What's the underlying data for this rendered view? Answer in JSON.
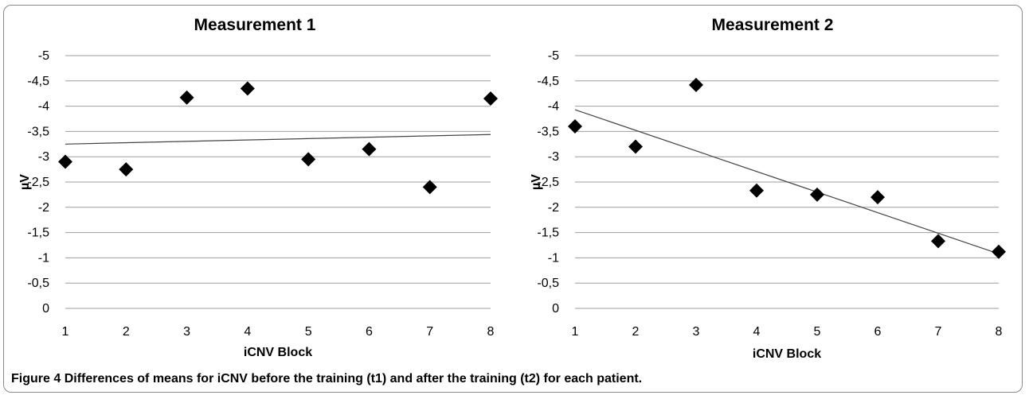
{
  "caption": {
    "label": "Figure 4",
    "text": "Differences of means for iCNV before the training (t1) and after the training (t2) for each patient."
  },
  "chart_data": [
    {
      "type": "scatter",
      "title": "Measurement 1",
      "xlabel": "iCNV Block",
      "ylabel": "µV",
      "x": [
        1,
        2,
        3,
        4,
        5,
        6,
        7,
        8
      ],
      "y": [
        -2.9,
        -2.75,
        -4.17,
        -4.35,
        -2.95,
        -3.15,
        -2.4,
        -4.15
      ],
      "xlim": [
        1,
        8
      ],
      "ylim": [
        0,
        -5
      ],
      "y_reversed": true,
      "x_ticks": [
        "1",
        "2",
        "3",
        "4",
        "5",
        "6",
        "7",
        "8"
      ],
      "y_ticks": [
        "-5",
        "-4,5",
        "-4",
        "-3,5",
        "-3",
        "-2,5",
        "-2",
        "-1,5",
        "-1",
        "-0,5",
        "0"
      ],
      "y_tick_values": [
        -5,
        -4.5,
        -4,
        -3.5,
        -3,
        -2.5,
        -2,
        -1.5,
        -1,
        -0.5,
        0
      ],
      "trendline": {
        "type": "linear",
        "x": [
          1,
          8
        ],
        "y": [
          -3.25,
          -3.44
        ]
      },
      "grid": true,
      "legend": "none",
      "marker": "diamond",
      "marker_color": "#000000"
    },
    {
      "type": "scatter",
      "title": "Measurement 2",
      "xlabel": "iCNV Block",
      "ylabel": "µV",
      "x": [
        1,
        2,
        3,
        4,
        5,
        6,
        7,
        8
      ],
      "y": [
        -3.6,
        -3.2,
        -4.42,
        -2.33,
        -2.25,
        -2.2,
        -1.33,
        -1.12
      ],
      "xlim": [
        1,
        8
      ],
      "ylim": [
        0,
        -5
      ],
      "y_reversed": true,
      "x_ticks": [
        "1",
        "2",
        "3",
        "4",
        "5",
        "6",
        "7",
        "8"
      ],
      "y_ticks": [
        "-5",
        "-4,5",
        "-4",
        "-3,5",
        "-3",
        "-2,5",
        "-2",
        "-1,5",
        "-1",
        "-0,5",
        "0"
      ],
      "y_tick_values": [
        -5,
        -4.5,
        -4,
        -3.5,
        -3,
        -2.5,
        -2,
        -1.5,
        -1,
        -0.5,
        0
      ],
      "trendline": {
        "type": "linear",
        "x": [
          1,
          8
        ],
        "y": [
          -3.93,
          -1.08
        ]
      },
      "grid": true,
      "legend": "none",
      "marker": "diamond",
      "marker_color": "#000000"
    }
  ]
}
